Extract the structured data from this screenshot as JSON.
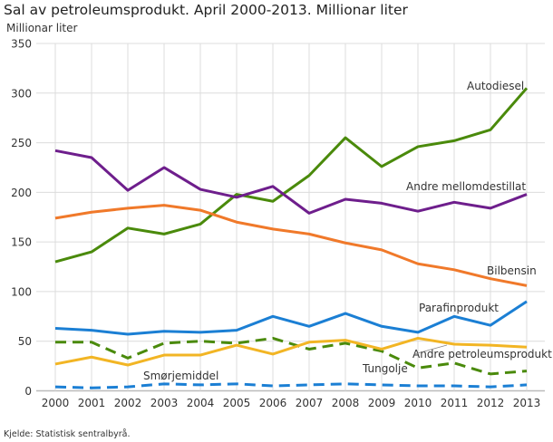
{
  "chart_data": {
    "type": "line",
    "title": "Sal av petroleumsprodukt. April 2000-2013. Millionar liter",
    "ylabel": "Millionar liter",
    "xlabel": "",
    "ylim": [
      0,
      350
    ],
    "yticks": [
      0,
      50,
      100,
      150,
      200,
      250,
      300,
      350
    ],
    "grid": true,
    "legend": "inline labels",
    "categories": [
      "2000",
      "2001",
      "2002",
      "2003",
      "2004",
      "2005",
      "2006",
      "2007",
      "2008",
      "2009",
      "2010",
      "2011",
      "2012",
      "2013"
    ],
    "series": [
      {
        "name": "Autodiesel",
        "color": "#4a8a0b",
        "dashed": false,
        "values": [
          130,
          140,
          164,
          158,
          168,
          198,
          191,
          217,
          255,
          226,
          246,
          252,
          263,
          305
        ]
      },
      {
        "name": "Andre mellomdestillat",
        "color": "#6e1e8c",
        "dashed": false,
        "values": [
          242,
          235,
          202,
          225,
          203,
          195,
          206,
          179,
          193,
          189,
          181,
          190,
          184,
          198
        ]
      },
      {
        "name": "Bilbensin",
        "color": "#f0792a",
        "dashed": false,
        "values": [
          174,
          180,
          184,
          187,
          182,
          170,
          163,
          158,
          149,
          142,
          128,
          122,
          113,
          106
        ]
      },
      {
        "name": "Parafinprodukt",
        "color": "#1b7fd4",
        "dashed": false,
        "values": [
          63,
          61,
          57,
          60,
          59,
          61,
          75,
          65,
          78,
          65,
          59,
          75,
          66,
          90
        ]
      },
      {
        "name": "Tungolje",
        "color": "#4a8a0b",
        "dashed": true,
        "values": [
          49,
          49,
          33,
          48,
          50,
          48,
          53,
          42,
          48,
          40,
          23,
          28,
          17,
          20
        ]
      },
      {
        "name": "Andre petroleumsprodukt",
        "color": "#f2b524",
        "dashed": false,
        "values": [
          27,
          34,
          26,
          36,
          36,
          46,
          37,
          49,
          51,
          42,
          53,
          47,
          46,
          44
        ]
      },
      {
        "name": "Smørjemiddel",
        "color": "#1b7fd4",
        "dashed": true,
        "values": [
          4,
          3,
          4,
          7,
          6,
          7,
          5,
          6,
          7,
          6,
          5,
          5,
          4,
          6
        ]
      }
    ]
  },
  "source": "Kjelde: Statistisk sentralbyrå."
}
